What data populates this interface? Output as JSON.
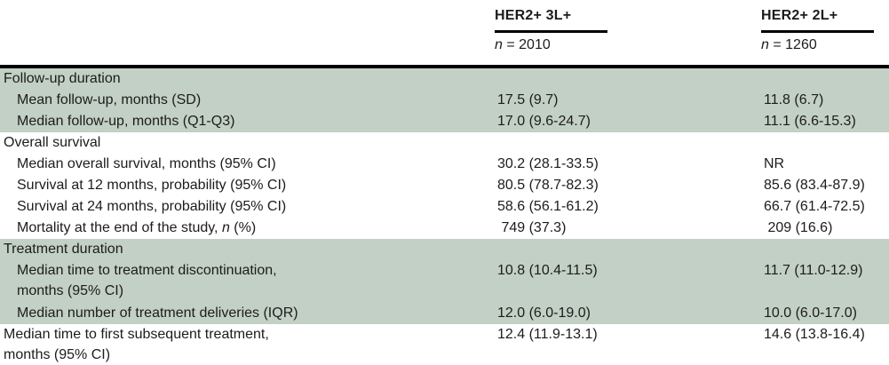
{
  "table": {
    "columns": [
      {
        "title": "HER2+ 3L+",
        "n_italic": "n",
        "n_rest": " = 2010"
      },
      {
        "title": "HER2+ 2L+",
        "n_italic": "n",
        "n_rest": " = 1260"
      }
    ],
    "rows": [
      {
        "type": "section",
        "label": "Follow-up duration"
      },
      {
        "type": "data",
        "label": "Mean follow-up, months (SD)",
        "v1": "17.5 (9.7)",
        "v2": "11.8 (6.7)"
      },
      {
        "type": "data",
        "label": "Median follow-up, months (Q1-Q3)",
        "v1": "17.0 (9.6-24.7)",
        "v2": "11.1 (6.6-15.3)"
      },
      {
        "type": "section",
        "label": "Overall survival"
      },
      {
        "type": "data",
        "label": "Median overall survival, months (95% CI)",
        "v1": "30.2 (28.1-33.5)",
        "v2": "NR"
      },
      {
        "type": "data",
        "label": "Survival at 12 months, probability (95% CI)",
        "v1": "80.5 (78.7-82.3)",
        "v2": "85.6 (83.4-87.9)"
      },
      {
        "type": "data",
        "label": "Survival at 24 months, probability (95% CI)",
        "v1": "58.6 (56.1-61.2)",
        "v2": "66.7 (61.4-72.5)"
      },
      {
        "type": "data-italic",
        "label_pre": "Mortality at the end of the study, ",
        "label_italic": "n",
        "label_post": " (%)",
        "v1": " 749 (37.3)",
        "v2": " 209 (16.6)"
      },
      {
        "type": "section",
        "label": "Treatment duration"
      },
      {
        "type": "data-twoline",
        "label_line1": "Median time to treatment discontinuation,",
        "label_line2": "months (95% CI)",
        "v1": "10.8 (10.4-11.5)",
        "v2": "11.7 (11.0-12.9)"
      },
      {
        "type": "data",
        "label": "Median number of treatment deliveries (IQR)",
        "v1": "12.0 (6.0-19.0)",
        "v2": "10.0 (6.0-17.0)"
      },
      {
        "type": "data-twoline-noindent",
        "label_line1": "Median time to first subsequent treatment,",
        "label_line2": "months (95% CI)",
        "v1": "12.4 (11.9-13.1)",
        "v2": "14.6 (13.8-16.4)"
      }
    ]
  }
}
